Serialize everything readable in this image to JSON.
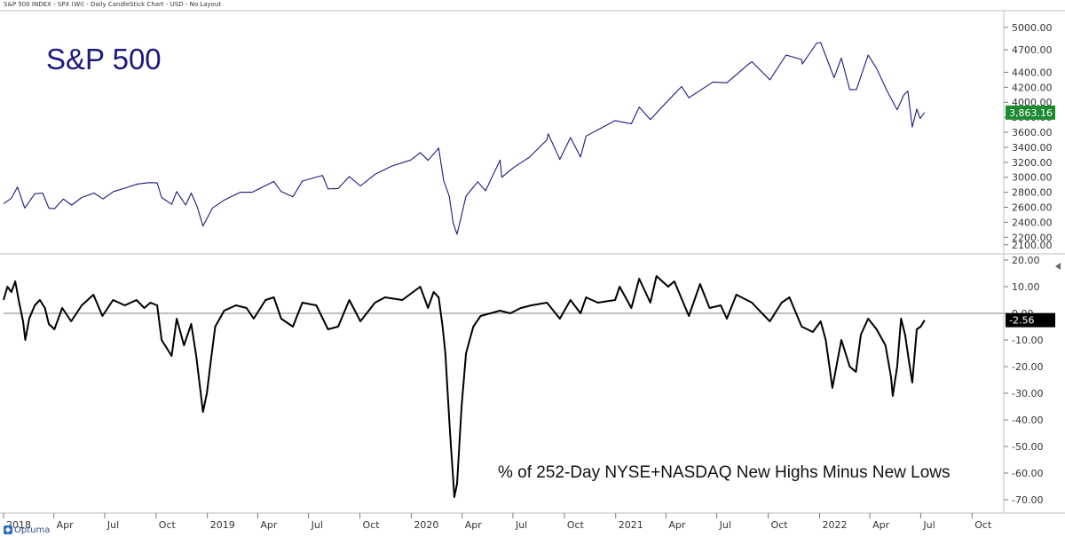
{
  "header": {
    "text": "S&P 500 INDEX - SPX (WI) - Daily CandleStick Chart - USD - No Layout"
  },
  "logo": {
    "text": "Optuma"
  },
  "colors": {
    "price": "#1a1a7e",
    "indicator": "#000000",
    "price_badge": "#1c8a2f",
    "indicator_badge": "#000000"
  },
  "chart_data": [
    {
      "type": "line",
      "title": "S&P 500",
      "last_value_label": "3,863.16",
      "ylim": [
        2050,
        5080
      ],
      "y_ticks": [
        {
          "v": 5000,
          "label": "5000.00"
        },
        {
          "v": 4700,
          "label": "4700.00"
        },
        {
          "v": 4400,
          "label": "4400.00"
        },
        {
          "v": 4200,
          "label": "4200.00"
        },
        {
          "v": 4000,
          "label": "4000.00"
        },
        {
          "v": 3800,
          "label": "3800.00"
        },
        {
          "v": 3600,
          "label": "3600.00"
        },
        {
          "v": 3400,
          "label": "3400.00"
        },
        {
          "v": 3200,
          "label": "3200.00"
        },
        {
          "v": 3000,
          "label": "3000.00"
        },
        {
          "v": 2800,
          "label": "2800.00"
        },
        {
          "v": 2600,
          "label": "2600.00"
        },
        {
          "v": 2400,
          "label": "2400.00"
        },
        {
          "v": 2200,
          "label": "2200.00"
        },
        {
          "v": 2100,
          "label": "2100.00"
        }
      ],
      "points": [
        [
          "2018-01-01",
          2650
        ],
        [
          "2018-01-15",
          2720
        ],
        [
          "2018-01-26",
          2870
        ],
        [
          "2018-02-08",
          2590
        ],
        [
          "2018-02-26",
          2780
        ],
        [
          "2018-03-12",
          2790
        ],
        [
          "2018-03-23",
          2590
        ],
        [
          "2018-04-02",
          2580
        ],
        [
          "2018-04-18",
          2710
        ],
        [
          "2018-05-03",
          2630
        ],
        [
          "2018-05-21",
          2730
        ],
        [
          "2018-06-12",
          2790
        ],
        [
          "2018-06-28",
          2710
        ],
        [
          "2018-07-17",
          2810
        ],
        [
          "2018-08-08",
          2860
        ],
        [
          "2018-08-29",
          2910
        ],
        [
          "2018-09-20",
          2930
        ],
        [
          "2018-10-03",
          2925
        ],
        [
          "2018-10-11",
          2730
        ],
        [
          "2018-10-29",
          2640
        ],
        [
          "2018-11-07",
          2810
        ],
        [
          "2018-11-23",
          2630
        ],
        [
          "2018-12-03",
          2790
        ],
        [
          "2018-12-14",
          2600
        ],
        [
          "2018-12-24",
          2350
        ],
        [
          "2019-01-10",
          2590
        ],
        [
          "2019-02-01",
          2700
        ],
        [
          "2019-03-01",
          2800
        ],
        [
          "2019-03-22",
          2800
        ],
        [
          "2019-04-30",
          2945
        ],
        [
          "2019-05-13",
          2810
        ],
        [
          "2019-06-03",
          2740
        ],
        [
          "2019-06-20",
          2950
        ],
        [
          "2019-07-26",
          3025
        ],
        [
          "2019-08-05",
          2845
        ],
        [
          "2019-08-23",
          2850
        ],
        [
          "2019-09-12",
          3010
        ],
        [
          "2019-10-02",
          2885
        ],
        [
          "2019-10-28",
          3040
        ],
        [
          "2019-11-27",
          3150
        ],
        [
          "2019-12-31",
          3230
        ],
        [
          "2020-01-17",
          3330
        ],
        [
          "2020-01-31",
          3225
        ],
        [
          "2020-02-19",
          3390
        ],
        [
          "2020-02-28",
          2955
        ],
        [
          "2020-03-09",
          2750
        ],
        [
          "2020-03-16",
          2390
        ],
        [
          "2020-03-23",
          2240
        ],
        [
          "2020-04-08",
          2750
        ],
        [
          "2020-04-29",
          2940
        ],
        [
          "2020-05-13",
          2820
        ],
        [
          "2020-06-08",
          3230
        ],
        [
          "2020-06-11",
          3000
        ],
        [
          "2020-07-02",
          3130
        ],
        [
          "2020-07-31",
          3270
        ],
        [
          "2020-08-31",
          3500
        ],
        [
          "2020-09-02",
          3580
        ],
        [
          "2020-09-23",
          3240
        ],
        [
          "2020-10-12",
          3530
        ],
        [
          "2020-10-30",
          3270
        ],
        [
          "2020-11-09",
          3550
        ],
        [
          "2020-12-31",
          3756
        ],
        [
          "2021-01-29",
          3714
        ],
        [
          "2021-02-12",
          3935
        ],
        [
          "2021-03-04",
          3770
        ],
        [
          "2021-03-29",
          3970
        ],
        [
          "2021-04-29",
          4210
        ],
        [
          "2021-05-12",
          4060
        ],
        [
          "2021-06-24",
          4270
        ],
        [
          "2021-07-19",
          4260
        ],
        [
          "2021-08-27",
          4510
        ],
        [
          "2021-09-02",
          4540
        ],
        [
          "2021-10-04",
          4300
        ],
        [
          "2021-11-02",
          4630
        ],
        [
          "2021-11-30",
          4570
        ],
        [
          "2021-12-01",
          4510
        ],
        [
          "2021-12-27",
          4790
        ],
        [
          "2022-01-03",
          4796
        ],
        [
          "2022-01-27",
          4330
        ],
        [
          "2022-02-09",
          4590
        ],
        [
          "2022-02-24",
          4170
        ],
        [
          "2022-03-08",
          4170
        ],
        [
          "2022-03-29",
          4630
        ],
        [
          "2022-04-13",
          4450
        ],
        [
          "2022-05-02",
          4150
        ],
        [
          "2022-05-20",
          3900
        ],
        [
          "2022-06-01",
          4100
        ],
        [
          "2022-06-08",
          4150
        ],
        [
          "2022-06-16",
          3670
        ],
        [
          "2022-06-24",
          3910
        ],
        [
          "2022-06-30",
          3785
        ],
        [
          "2022-07-08",
          3863
        ]
      ]
    },
    {
      "type": "line",
      "title": "% of 252-Day NYSE+NASDAQ New Highs Minus New Lows",
      "last_value_label": "-2.56",
      "ylim": [
        -73,
        21
      ],
      "y_ticks": [
        {
          "v": 20,
          "label": "20.00"
        },
        {
          "v": 10,
          "label": "10.00"
        },
        {
          "v": 0,
          "label": "0.00"
        },
        {
          "v": -10,
          "label": "-10.00"
        },
        {
          "v": -20,
          "label": "-20.00"
        },
        {
          "v": -30,
          "label": "-30.00"
        },
        {
          "v": -40,
          "label": "-40.00"
        },
        {
          "v": -50,
          "label": "-50.00"
        },
        {
          "v": -60,
          "label": "-60.00"
        },
        {
          "v": -70,
          "label": "-70.00"
        }
      ],
      "zero_line": 0,
      "points": [
        [
          "2018-01-01",
          5
        ],
        [
          "2018-01-08",
          10
        ],
        [
          "2018-01-15",
          8
        ],
        [
          "2018-01-22",
          12
        ],
        [
          "2018-01-29",
          4
        ],
        [
          "2018-02-05",
          -3
        ],
        [
          "2018-02-09",
          -10
        ],
        [
          "2018-02-16",
          -2
        ],
        [
          "2018-02-26",
          3
        ],
        [
          "2018-03-07",
          5
        ],
        [
          "2018-03-16",
          2
        ],
        [
          "2018-03-23",
          -4
        ],
        [
          "2018-04-02",
          -6
        ],
        [
          "2018-04-16",
          2
        ],
        [
          "2018-05-02",
          -3
        ],
        [
          "2018-05-21",
          3
        ],
        [
          "2018-06-11",
          7
        ],
        [
          "2018-06-27",
          -1
        ],
        [
          "2018-07-16",
          5
        ],
        [
          "2018-08-06",
          3
        ],
        [
          "2018-08-27",
          5
        ],
        [
          "2018-09-10",
          2
        ],
        [
          "2018-09-21",
          4
        ],
        [
          "2018-10-03",
          3
        ],
        [
          "2018-10-11",
          -10
        ],
        [
          "2018-10-29",
          -16
        ],
        [
          "2018-11-07",
          -2
        ],
        [
          "2018-11-20",
          -12
        ],
        [
          "2018-12-03",
          -4
        ],
        [
          "2018-12-12",
          -16
        ],
        [
          "2018-12-24",
          -37
        ],
        [
          "2018-12-31",
          -30
        ],
        [
          "2019-01-07",
          -18
        ],
        [
          "2019-01-15",
          -5
        ],
        [
          "2019-01-31",
          1
        ],
        [
          "2019-02-21",
          3
        ],
        [
          "2019-03-12",
          2
        ],
        [
          "2019-03-25",
          -2
        ],
        [
          "2019-04-15",
          5
        ],
        [
          "2019-04-30",
          6
        ],
        [
          "2019-05-13",
          -2
        ],
        [
          "2019-06-03",
          -5
        ],
        [
          "2019-06-20",
          4
        ],
        [
          "2019-07-15",
          3
        ],
        [
          "2019-08-05",
          -6
        ],
        [
          "2019-08-23",
          -5
        ],
        [
          "2019-09-12",
          5
        ],
        [
          "2019-10-02",
          -3
        ],
        [
          "2019-10-28",
          4
        ],
        [
          "2019-11-15",
          6
        ],
        [
          "2019-12-16",
          5
        ],
        [
          "2020-01-17",
          10
        ],
        [
          "2020-01-31",
          2
        ],
        [
          "2020-02-10",
          8
        ],
        [
          "2020-02-19",
          6
        ],
        [
          "2020-02-26",
          -5
        ],
        [
          "2020-03-02",
          -15
        ],
        [
          "2020-03-09",
          -40
        ],
        [
          "2020-03-12",
          -50
        ],
        [
          "2020-03-16",
          -62
        ],
        [
          "2020-03-18",
          -69
        ],
        [
          "2020-03-23",
          -64
        ],
        [
          "2020-03-31",
          -35
        ],
        [
          "2020-04-08",
          -15
        ],
        [
          "2020-04-21",
          -5
        ],
        [
          "2020-05-04",
          -1
        ],
        [
          "2020-06-08",
          1
        ],
        [
          "2020-06-26",
          0
        ],
        [
          "2020-07-15",
          2
        ],
        [
          "2020-08-03",
          3
        ],
        [
          "2020-08-31",
          4
        ],
        [
          "2020-09-23",
          -2
        ],
        [
          "2020-10-12",
          5
        ],
        [
          "2020-10-30",
          0
        ],
        [
          "2020-11-09",
          6
        ],
        [
          "2020-11-30",
          4
        ],
        [
          "2020-12-31",
          5
        ],
        [
          "2021-01-08",
          10
        ],
        [
          "2021-01-29",
          2
        ],
        [
          "2021-02-12",
          13
        ],
        [
          "2021-03-04",
          4
        ],
        [
          "2021-03-15",
          14
        ],
        [
          "2021-04-05",
          10
        ],
        [
          "2021-04-16",
          12
        ],
        [
          "2021-05-12",
          -1
        ],
        [
          "2021-06-01",
          11
        ],
        [
          "2021-06-18",
          2
        ],
        [
          "2021-07-08",
          3
        ],
        [
          "2021-07-19",
          -2
        ],
        [
          "2021-08-05",
          7
        ],
        [
          "2021-09-02",
          4
        ],
        [
          "2021-09-20",
          0
        ],
        [
          "2021-10-04",
          -3
        ],
        [
          "2021-10-25",
          4
        ],
        [
          "2021-11-08",
          6
        ],
        [
          "2021-11-30",
          -5
        ],
        [
          "2021-12-20",
          -7
        ],
        [
          "2022-01-03",
          -3
        ],
        [
          "2022-01-12",
          -10
        ],
        [
          "2022-01-24",
          -28
        ],
        [
          "2022-02-09",
          -10
        ],
        [
          "2022-02-24",
          -20
        ],
        [
          "2022-03-07",
          -22
        ],
        [
          "2022-03-16",
          -8
        ],
        [
          "2022-03-29",
          -2
        ],
        [
          "2022-04-13",
          -6
        ],
        [
          "2022-04-29",
          -12
        ],
        [
          "2022-05-09",
          -24
        ],
        [
          "2022-05-12",
          -31
        ],
        [
          "2022-05-20",
          -20
        ],
        [
          "2022-05-27",
          -2
        ],
        [
          "2022-06-03",
          -8
        ],
        [
          "2022-06-10",
          -18
        ],
        [
          "2022-06-16",
          -26
        ],
        [
          "2022-06-24",
          -6
        ],
        [
          "2022-07-01",
          -5
        ],
        [
          "2022-07-08",
          -2.56
        ]
      ]
    }
  ],
  "x_axis": {
    "ticks": [
      {
        "date": "2018-01-01",
        "label": "2018"
      },
      {
        "date": "2018-04-01",
        "label": "Apr"
      },
      {
        "date": "2018-07-01",
        "label": "Jul"
      },
      {
        "date": "2018-10-01",
        "label": "Oct"
      },
      {
        "date": "2019-01-01",
        "label": "2019"
      },
      {
        "date": "2019-04-01",
        "label": "Apr"
      },
      {
        "date": "2019-07-01",
        "label": "Jul"
      },
      {
        "date": "2019-10-01",
        "label": "Oct"
      },
      {
        "date": "2020-01-01",
        "label": "2020"
      },
      {
        "date": "2020-04-01",
        "label": "Apr"
      },
      {
        "date": "2020-07-01",
        "label": "Jul"
      },
      {
        "date": "2020-10-01",
        "label": "Oct"
      },
      {
        "date": "2021-01-01",
        "label": "2021"
      },
      {
        "date": "2021-04-01",
        "label": "Apr"
      },
      {
        "date": "2021-07-01",
        "label": "Jul"
      },
      {
        "date": "2021-10-01",
        "label": "Oct"
      },
      {
        "date": "2022-01-01",
        "label": "2022"
      },
      {
        "date": "2022-04-01",
        "label": "Apr"
      },
      {
        "date": "2022-07-01",
        "label": "Jul"
      },
      {
        "date": "2022-10-01",
        "label": "Oct"
      }
    ]
  }
}
